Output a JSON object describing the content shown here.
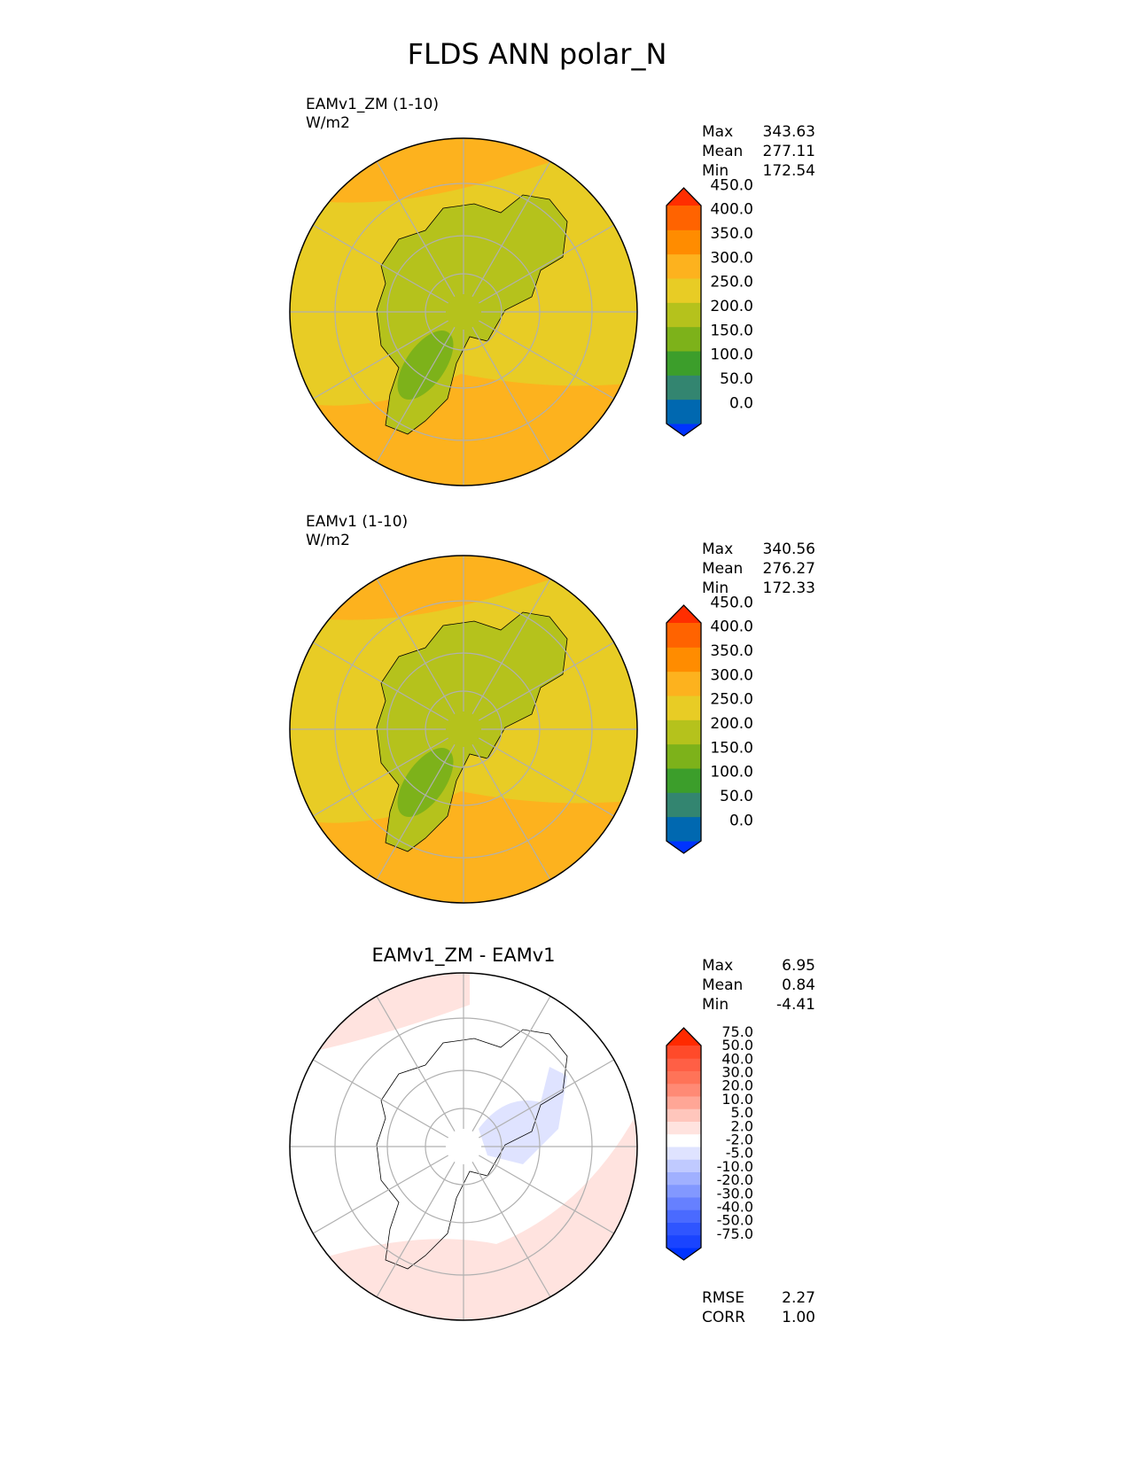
{
  "title": "FLDS ANN polar_N",
  "chart_data": [
    {
      "type": "heatmap",
      "projection": "north-polar-stereographic",
      "title": "EAMv1_ZM (1-10)",
      "units": "W/m2",
      "stats": {
        "max_label": "Max",
        "max": "343.63",
        "mean_label": "Mean",
        "mean": "277.11",
        "min_label": "Min",
        "min": "172.54"
      },
      "levels": [
        "0.0",
        "50.0",
        "100.0",
        "150.0",
        "200.0",
        "250.0",
        "300.0",
        "350.0",
        "400.0",
        "450.0"
      ],
      "colors": [
        "#0033ff",
        "#0068b0",
        "#338570",
        "#3c9e2b",
        "#7db21a",
        "#b5c21c",
        "#e8cc25",
        "#fdb21e",
        "#ff8c00",
        "#ff6300",
        "#ff2e00"
      ]
    },
    {
      "type": "heatmap",
      "projection": "north-polar-stereographic",
      "title": "EAMv1 (1-10)",
      "units": "W/m2",
      "stats": {
        "max_label": "Max",
        "max": "340.56",
        "mean_label": "Mean",
        "mean": "276.27",
        "min_label": "Min",
        "min": "172.33"
      },
      "levels": [
        "0.0",
        "50.0",
        "100.0",
        "150.0",
        "200.0",
        "250.0",
        "300.0",
        "350.0",
        "400.0",
        "450.0"
      ],
      "colors": [
        "#0033ff",
        "#0068b0",
        "#338570",
        "#3c9e2b",
        "#7db21a",
        "#b5c21c",
        "#e8cc25",
        "#fdb21e",
        "#ff8c00",
        "#ff6300",
        "#ff2e00"
      ]
    },
    {
      "type": "heatmap",
      "projection": "north-polar-stereographic",
      "title": "EAMv1_ZM - EAMv1",
      "stats": {
        "max_label": "Max",
        "max": "6.95",
        "mean_label": "Mean",
        "mean": "0.84",
        "min_label": "Min",
        "min": "-4.41"
      },
      "levels": [
        "-75.0",
        "-50.0",
        "-40.0",
        "-30.0",
        "-20.0",
        "-10.0",
        "-5.0",
        "-2.0",
        "2.0",
        "5.0",
        "10.0",
        "20.0",
        "30.0",
        "40.0",
        "50.0",
        "75.0"
      ],
      "colors": [
        "#0033ff",
        "#1a44ff",
        "#2f55ff",
        "#4a6aff",
        "#6680ff",
        "#8298ff",
        "#a0b0ff",
        "#c0caff",
        "#dfe3ff",
        "#ffffff",
        "#ffe3df",
        "#ffc6bc",
        "#ffa696",
        "#ff8a75",
        "#ff7358",
        "#ff5f45",
        "#ff4a2a",
        "#ff2a00"
      ],
      "metrics": {
        "rmse_label": "RMSE",
        "rmse": "2.27",
        "corr_label": "CORR",
        "corr": "1.00"
      }
    }
  ]
}
